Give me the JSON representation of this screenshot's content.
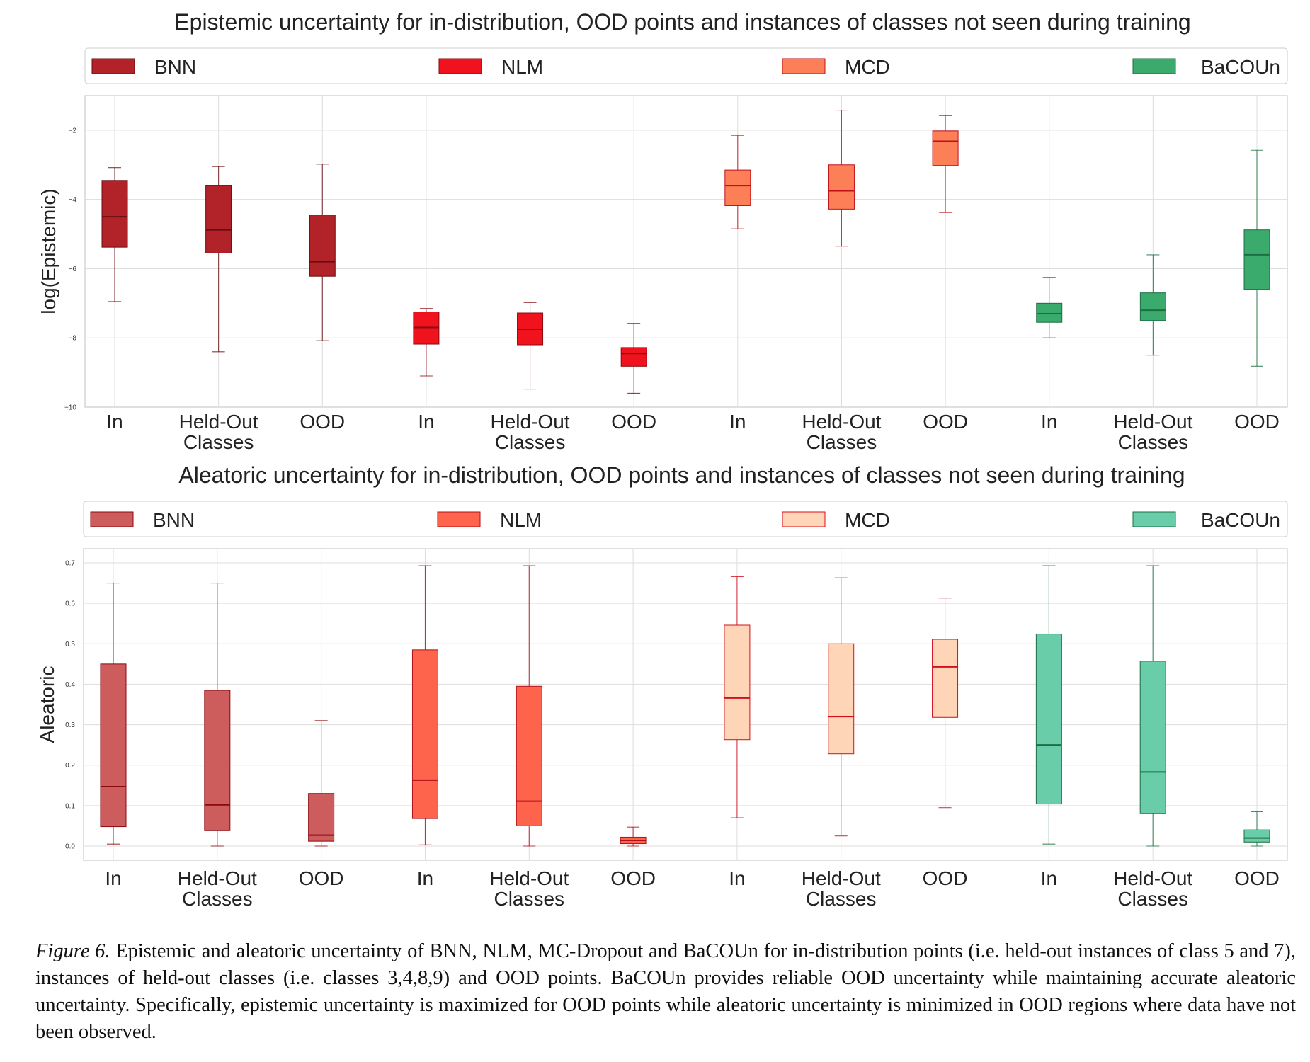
{
  "chart_data": [
    {
      "type": "box",
      "title": "Epistemic uncertainty for in-distribution, OOD points and instances of classes not seen during training",
      "ylabel": "log(Epistemic)",
      "ylim": [
        -10,
        -1
      ],
      "yticks": [
        -10,
        -8,
        -6,
        -4,
        -2
      ],
      "ytick_labels": [
        "−10",
        "−8",
        "−6",
        "−4",
        "−2"
      ],
      "categories": [
        "In",
        "Held-Out\nClasses",
        "OOD"
      ],
      "grid": true,
      "legend_position": "top",
      "series": [
        {
          "name": "BNN",
          "color": "#b22229",
          "median_color": "#6b0d10",
          "boxes": [
            {
              "whislo": -6.95,
              "q1": -5.38,
              "med": -4.5,
              "q3": -3.45,
              "whishi": -3.08
            },
            {
              "whislo": -8.4,
              "q1": -5.55,
              "med": -4.88,
              "q3": -3.6,
              "whishi": -3.05
            },
            {
              "whislo": -8.08,
              "q1": -6.22,
              "med": -5.8,
              "q3": -4.45,
              "whishi": -2.98
            }
          ]
        },
        {
          "name": "NLM",
          "color": "#f0131e",
          "median_color": "#8b0a10",
          "boxes": [
            {
              "whislo": -9.1,
              "q1": -8.18,
              "med": -7.7,
              "q3": -7.25,
              "whishi": -7.15
            },
            {
              "whislo": -9.48,
              "q1": -8.2,
              "med": -7.75,
              "q3": -7.28,
              "whishi": -6.98
            },
            {
              "whislo": -9.6,
              "q1": -8.82,
              "med": -8.45,
              "q3": -8.28,
              "whishi": -7.58
            }
          ]
        },
        {
          "name": "MCD",
          "color": "#fd7f57",
          "median_color": "#c0111a",
          "boxes": [
            {
              "whislo": -4.85,
              "q1": -4.18,
              "med": -3.6,
              "q3": -3.15,
              "whishi": -2.15
            },
            {
              "whislo": -5.35,
              "q1": -4.28,
              "med": -3.75,
              "q3": -3.0,
              "whishi": -1.42
            },
            {
              "whislo": -4.38,
              "q1": -3.02,
              "med": -2.32,
              "q3": -2.02,
              "whishi": -1.58
            }
          ]
        },
        {
          "name": "BaCOUn",
          "color": "#3aab6c",
          "median_color": "#1e6e44",
          "boxes": [
            {
              "whislo": -8.0,
              "q1": -7.55,
              "med": -7.3,
              "q3": -7.0,
              "whishi": -6.25
            },
            {
              "whislo": -8.5,
              "q1": -7.5,
              "med": -7.2,
              "q3": -6.7,
              "whishi": -5.6
            },
            {
              "whislo": -8.82,
              "q1": -6.6,
              "med": -5.6,
              "q3": -4.88,
              "whishi": -2.58
            }
          ]
        }
      ]
    },
    {
      "type": "box",
      "title": "Aleatoric uncertainty for in-distribution, OOD points and instances of classes not seen during training",
      "ylabel": "Aleatoric",
      "ylim": [
        -0.035,
        0.735
      ],
      "yticks": [
        0.0,
        0.1,
        0.2,
        0.3,
        0.4,
        0.5,
        0.6,
        0.7
      ],
      "ytick_labels": [
        "0.0",
        "0.1",
        "0.2",
        "0.3",
        "0.4",
        "0.5",
        "0.6",
        "0.7"
      ],
      "categories": [
        "In",
        "Held-Out\nClasses",
        "OOD"
      ],
      "grid": true,
      "legend_position": "top",
      "series": [
        {
          "name": "BNN",
          "color": "#cd5c5c",
          "median_color": "#8b0a10",
          "boxes": [
            {
              "whislo": 0.005,
              "q1": 0.048,
              "med": 0.147,
              "q3": 0.45,
              "whishi": 0.65
            },
            {
              "whislo": 0.0,
              "q1": 0.038,
              "med": 0.102,
              "q3": 0.385,
              "whishi": 0.65
            },
            {
              "whislo": 0.0,
              "q1": 0.012,
              "med": 0.027,
              "q3": 0.13,
              "whishi": 0.31
            }
          ]
        },
        {
          "name": "NLM",
          "color": "#fe634c",
          "median_color": "#b0101a",
          "boxes": [
            {
              "whislo": 0.003,
              "q1": 0.068,
              "med": 0.163,
              "q3": 0.485,
              "whishi": 0.693
            },
            {
              "whislo": 0.0,
              "q1": 0.05,
              "med": 0.111,
              "q3": 0.395,
              "whishi": 0.693
            },
            {
              "whislo": 0.0,
              "q1": 0.006,
              "med": 0.014,
              "q3": 0.022,
              "whishi": 0.047
            }
          ]
        },
        {
          "name": "MCD",
          "color": "#ffd5b8",
          "median_color": "#d40f1c",
          "boxes": [
            {
              "whislo": 0.07,
              "q1": 0.263,
              "med": 0.366,
              "q3": 0.546,
              "whishi": 0.666
            },
            {
              "whislo": 0.025,
              "q1": 0.228,
              "med": 0.32,
              "q3": 0.5,
              "whishi": 0.663
            },
            {
              "whislo": 0.095,
              "q1": 0.318,
              "med": 0.443,
              "q3": 0.511,
              "whishi": 0.613
            }
          ]
        },
        {
          "name": "BaCOUn",
          "color": "#6acda9",
          "median_color": "#1e6e44",
          "boxes": [
            {
              "whislo": 0.005,
              "q1": 0.104,
              "med": 0.25,
              "q3": 0.524,
              "whishi": 0.693
            },
            {
              "whislo": 0.0,
              "q1": 0.08,
              "med": 0.183,
              "q3": 0.457,
              "whishi": 0.693
            },
            {
              "whislo": 0.0,
              "q1": 0.01,
              "med": 0.02,
              "q3": 0.04,
              "whishi": 0.085
            }
          ]
        }
      ]
    }
  ],
  "caption": {
    "label": "Figure 6.",
    "text": " Epistemic and aleatoric uncertainty of BNN, NLM, MC-Dropout and BaCOUn for in-distribution points (i.e. held-out instances of class 5 and 7), instances of held-out classes (i.e. classes 3,4,8,9) and OOD points. BaCOUn provides reliable OOD uncertainty while maintaining accurate aleatoric uncertainty. Specifically, epistemic uncertainty is maximized for OOD points while aleatoric uncertainty is minimized in OOD regions where data have not been observed."
  }
}
